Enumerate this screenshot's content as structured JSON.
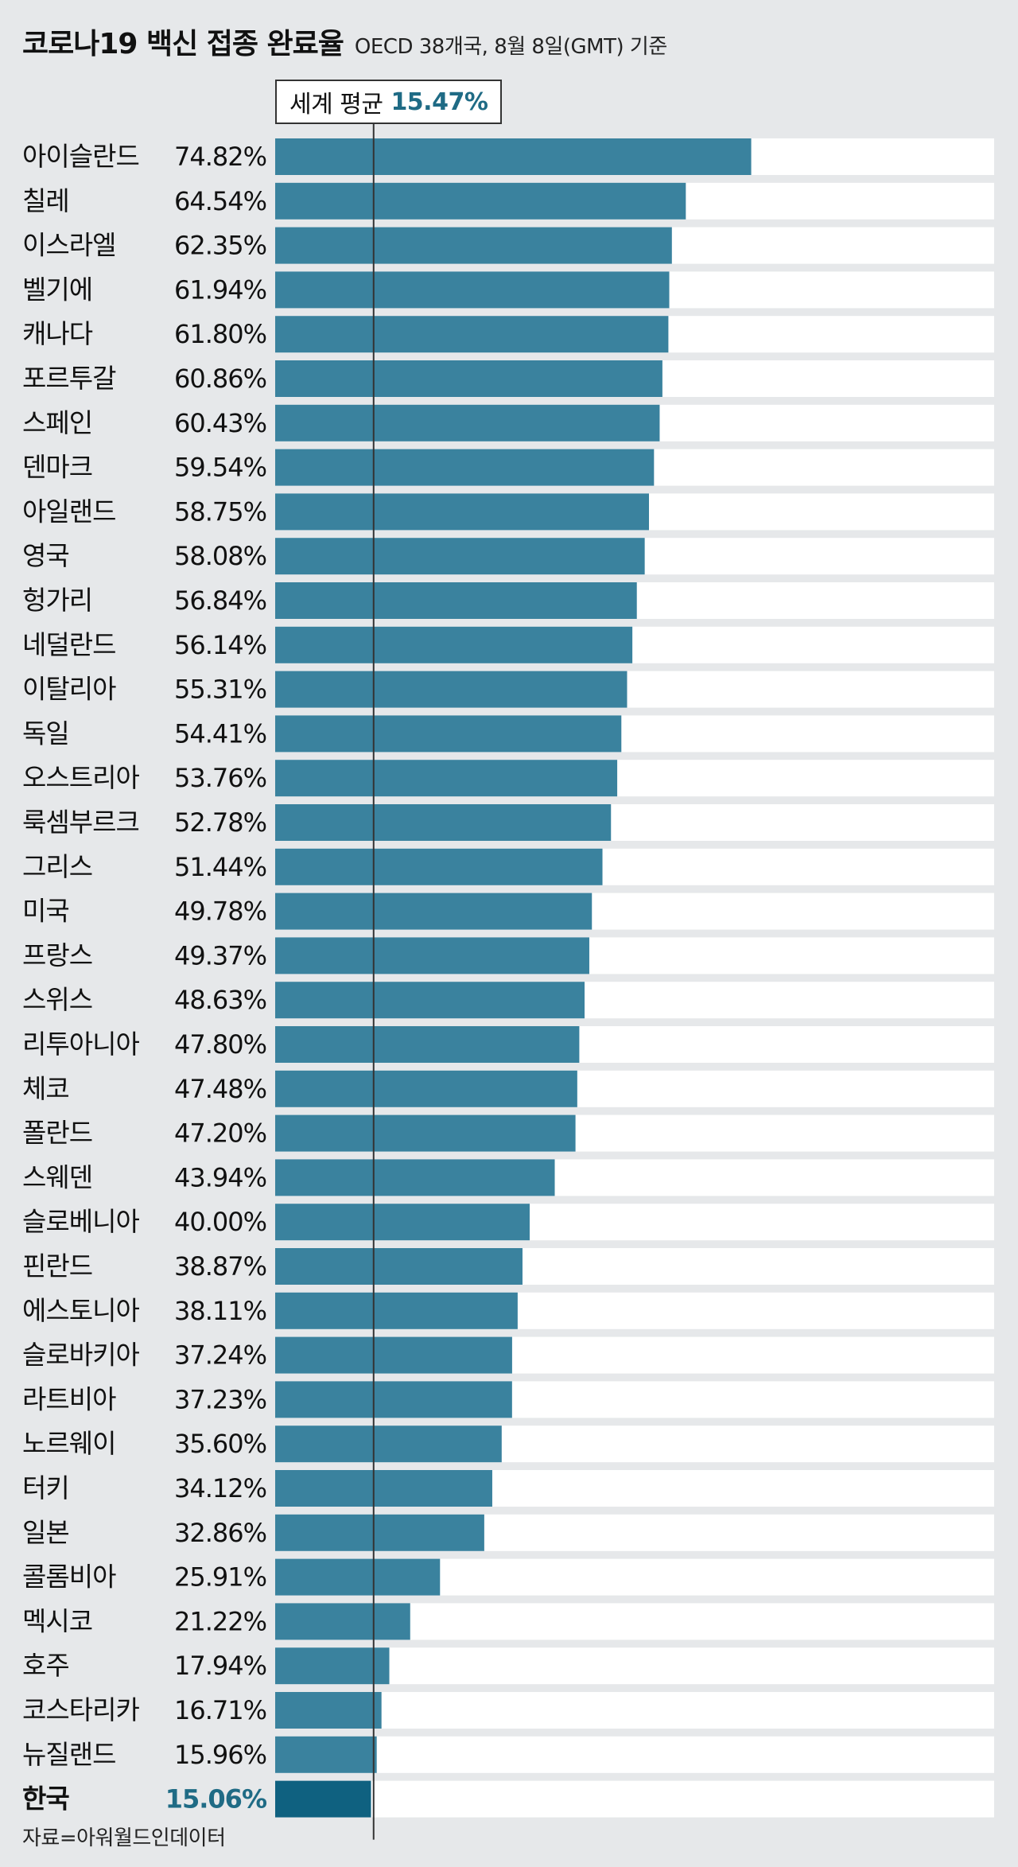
{
  "header": {
    "title": "코로나19 백신 접종 완료율",
    "subtitle": "OECD 38개국, 8월 8일(GMT) 기준"
  },
  "average": {
    "label": "세계 평균",
    "value_text": "15.47%",
    "value": 15.47
  },
  "source": "자료=아워월드인데이터",
  "colors": {
    "bar": "#3a829e",
    "bar_highlight": "#0f6180",
    "track": "#ffffff",
    "highlight_text": "#1f6b85"
  },
  "chart_data": {
    "type": "bar",
    "orientation": "horizontal",
    "xlim": [
      0,
      100
    ],
    "grid": false,
    "highlight": "한국",
    "categories": [
      "아이슬란드",
      "칠레",
      "이스라엘",
      "벨기에",
      "캐나다",
      "포르투갈",
      "스페인",
      "덴마크",
      "아일랜드",
      "영국",
      "헝가리",
      "네덜란드",
      "이탈리아",
      "독일",
      "오스트리아",
      "룩셈부르크",
      "그리스",
      "미국",
      "프랑스",
      "스위스",
      "리투아니아",
      "체코",
      "폴란드",
      "스웨덴",
      "슬로베니아",
      "핀란드",
      "에스토니아",
      "슬로바키아",
      "라트비아",
      "노르웨이",
      "터키",
      "일본",
      "콜롬비아",
      "멕시코",
      "호주",
      "코스타리카",
      "뉴질랜드",
      "한국"
    ],
    "values": [
      74.82,
      64.54,
      62.35,
      61.94,
      61.8,
      60.86,
      60.43,
      59.54,
      58.75,
      58.08,
      56.84,
      56.14,
      55.31,
      54.41,
      53.76,
      52.78,
      51.44,
      49.78,
      49.37,
      48.63,
      47.8,
      47.48,
      47.2,
      43.94,
      40.0,
      38.87,
      38.11,
      37.24,
      37.23,
      35.6,
      34.12,
      32.86,
      25.91,
      21.22,
      17.94,
      16.71,
      15.96,
      15.06
    ],
    "value_labels": [
      "74.82%",
      "64.54%",
      "62.35%",
      "61.94%",
      "61.80%",
      "60.86%",
      "60.43%",
      "59.54%",
      "58.75%",
      "58.08%",
      "56.84%",
      "56.14%",
      "55.31%",
      "54.41%",
      "53.76%",
      "52.78%",
      "51.44%",
      "49.78%",
      "49.37%",
      "48.63%",
      "47.80%",
      "47.48%",
      "47.20%",
      "43.94%",
      "40.00%",
      "38.87%",
      "38.11%",
      "37.24%",
      "37.23%",
      "35.60%",
      "34.12%",
      "32.86%",
      "25.91%",
      "21.22%",
      "17.94%",
      "16.71%",
      "15.96%",
      "15.06%"
    ]
  }
}
